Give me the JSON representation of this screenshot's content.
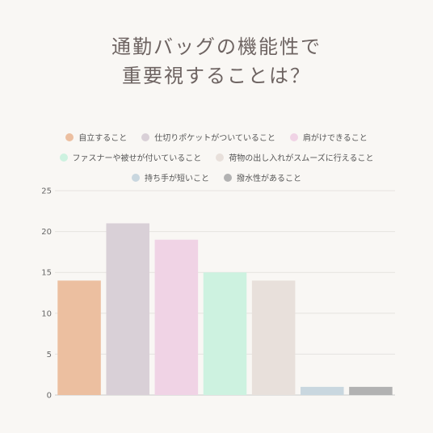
{
  "title_lines": [
    "通勤バッグの機能性で",
    "重要視することは？"
  ],
  "chart_data": {
    "type": "bar",
    "categories": [
      "自立すること",
      "仕切りポケットがついていること",
      "肩がけできること",
      "ファスナーや被せが付いていること",
      "荷物の出し入れがスムーズに行えること",
      "持ち手が短いこと",
      "撥水性があること"
    ],
    "values": [
      14,
      21,
      19,
      15,
      14,
      1,
      1
    ],
    "colors": [
      "#ecbfa0",
      "#d9d0d7",
      "#f0d3e5",
      "#cdf2e0",
      "#e8e0db",
      "#c9d7df",
      "#b2b2b2"
    ],
    "ylim": [
      0,
      25
    ],
    "yticks": [
      "0",
      "5",
      "10",
      "15",
      "20",
      "25"
    ],
    "legend_position": "top",
    "grid": true
  }
}
